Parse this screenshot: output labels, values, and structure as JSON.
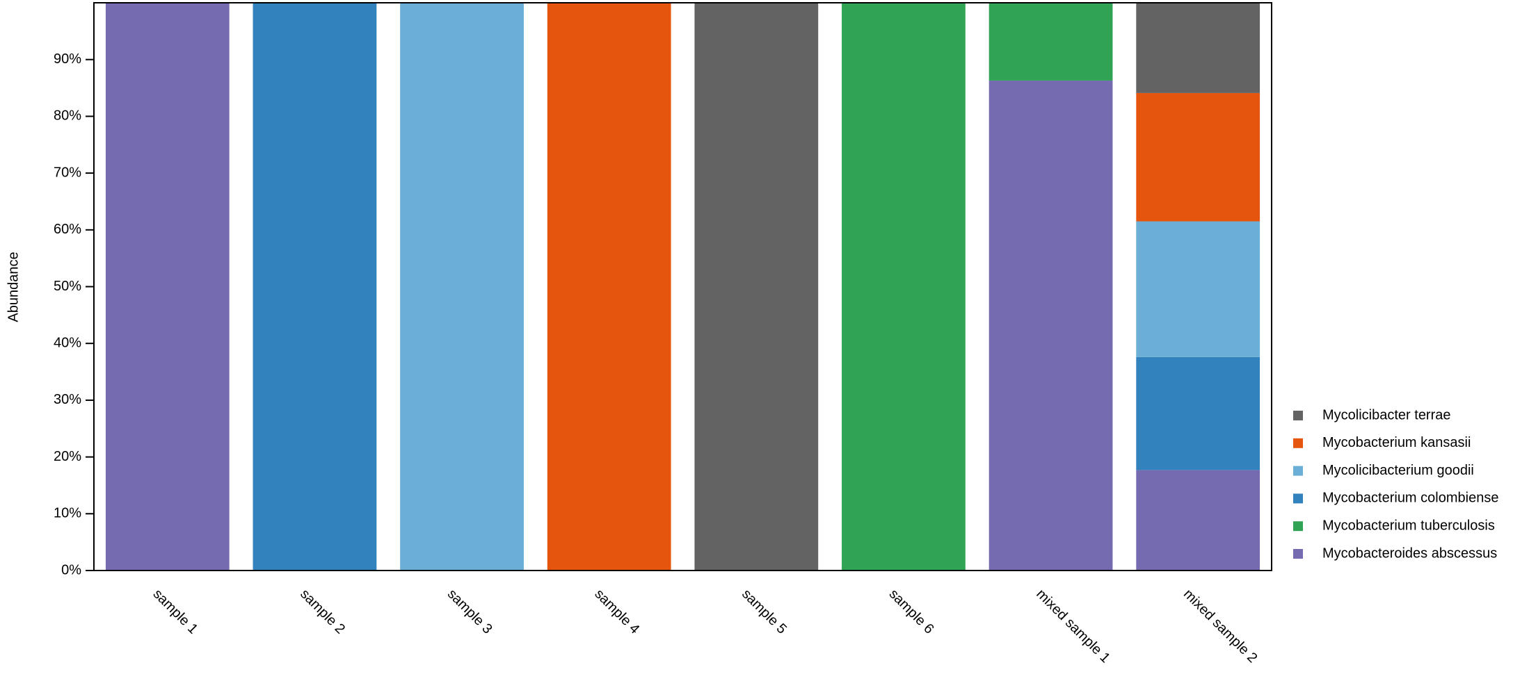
{
  "chart_data": {
    "type": "stacked_bar",
    "y_label": "Abundance",
    "categories": [
      "sample 1",
      "sample 2",
      "sample 3",
      "sample 4",
      "sample 5",
      "sample 6",
      "mixed sample 1",
      "mixed sample 2"
    ],
    "series": [
      {
        "name": "Mycobacteroides abscessus",
        "color": "#756bb1",
        "values": [
          100,
          0,
          0,
          0,
          0,
          0,
          86.3,
          17.7
        ]
      },
      {
        "name": "Mycobacterium tuberculosis",
        "color": "#31a354",
        "values": [
          0,
          0,
          0,
          0,
          0,
          100,
          13.7,
          0
        ]
      },
      {
        "name": "Mycobacterium colombiense",
        "color": "#3182bd",
        "values": [
          0,
          100,
          0,
          0,
          0,
          0,
          0,
          19.9
        ]
      },
      {
        "name": "Mycolicibacterium goodii",
        "color": "#6baed6",
        "values": [
          0,
          0,
          100,
          0,
          0,
          0,
          0,
          23.9
        ]
      },
      {
        "name": "Mycobacterium kansasii",
        "color": "#e6550d",
        "values": [
          0,
          0,
          0,
          100,
          0,
          0,
          0,
          22.6
        ]
      },
      {
        "name": "Mycolicibacter terrae",
        "color": "#636363",
        "values": [
          0,
          0,
          0,
          0,
          100,
          0,
          0,
          15.9
        ]
      }
    ],
    "ylim": [
      0,
      100
    ],
    "yticks": [
      {
        "value": 0,
        "label": "0%"
      },
      {
        "value": 10,
        "label": "10%"
      },
      {
        "value": 20,
        "label": "20%"
      },
      {
        "value": 30,
        "label": "30%"
      },
      {
        "value": 40,
        "label": "40%"
      },
      {
        "value": 50,
        "label": "50%"
      },
      {
        "value": 60,
        "label": "60%"
      },
      {
        "value": 70,
        "label": "70%"
      },
      {
        "value": 80,
        "label": "80%"
      },
      {
        "value": 90,
        "label": "90%"
      }
    ],
    "legend": "right"
  }
}
